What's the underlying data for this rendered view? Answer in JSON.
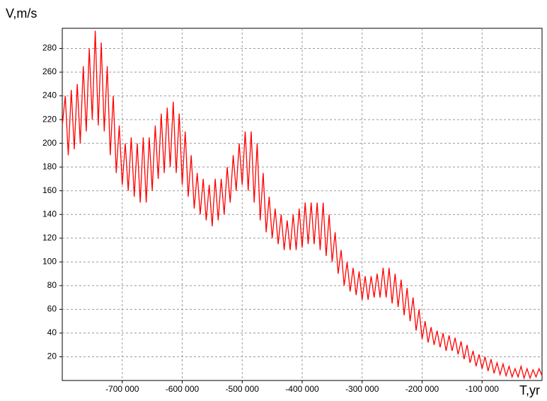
{
  "chart_data": {
    "type": "line",
    "x_label": "T,yr",
    "y_label": "V,m/s",
    "x": [
      -800000,
      -795000,
      -790000,
      -785000,
      -780000,
      -775000,
      -770000,
      -765000,
      -760000,
      -755000,
      -750000,
      -745000,
      -740000,
      -735000,
      -730000,
      -725000,
      -720000,
      -715000,
      -710000,
      -705000,
      -700000,
      -695000,
      -690000,
      -685000,
      -680000,
      -675000,
      -670000,
      -665000,
      -660000,
      -655000,
      -650000,
      -645000,
      -640000,
      -635000,
      -630000,
      -625000,
      -620000,
      -615000,
      -610000,
      -605000,
      -600000,
      -595000,
      -590000,
      -585000,
      -580000,
      -575000,
      -570000,
      -565000,
      -560000,
      -555000,
      -550000,
      -545000,
      -540000,
      -535000,
      -530000,
      -525000,
      -520000,
      -515000,
      -510000,
      -505000,
      -500000,
      -495000,
      -490000,
      -485000,
      -480000,
      -475000,
      -470000,
      -465000,
      -460000,
      -455000,
      -450000,
      -445000,
      -440000,
      -435000,
      -430000,
      -425000,
      -420000,
      -415000,
      -410000,
      -405000,
      -400000,
      -395000,
      -390000,
      -385000,
      -380000,
      -375000,
      -370000,
      -365000,
      -360000,
      -355000,
      -350000,
      -345000,
      -340000,
      -335000,
      -330000,
      -325000,
      -320000,
      -315000,
      -310000,
      -305000,
      -300000,
      -295000,
      -290000,
      -285000,
      -280000,
      -275000,
      -270000,
      -265000,
      -260000,
      -255000,
      -250000,
      -245000,
      -240000,
      -235000,
      -230000,
      -225000,
      -220000,
      -215000,
      -210000,
      -205000,
      -200000,
      -195000,
      -190000,
      -185000,
      -180000,
      -175000,
      -170000,
      -165000,
      -160000,
      -155000,
      -150000,
      -145000,
      -140000,
      -135000,
      -130000,
      -125000,
      -120000,
      -115000,
      -110000,
      -105000,
      -100000,
      -95000,
      -90000,
      -85000,
      -80000,
      -75000,
      -70000,
      -65000,
      -60000,
      -55000,
      -50000,
      -45000,
      -40000,
      -35000,
      -30000,
      -25000,
      -20000,
      -15000,
      -10000,
      -5000,
      0
    ],
    "series": [
      {
        "color": "#ff0000",
        "values": [
          215,
          240,
          190,
          245,
          195,
          250,
          200,
          265,
          210,
          280,
          220,
          295,
          215,
          285,
          210,
          265,
          190,
          240,
          175,
          215,
          165,
          200,
          160,
          205,
          155,
          200,
          150,
          205,
          150,
          205,
          160,
          215,
          170,
          225,
          175,
          230,
          180,
          235,
          175,
          225,
          165,
          210,
          155,
          190,
          145,
          175,
          140,
          170,
          135,
          165,
          130,
          170,
          135,
          170,
          140,
          180,
          150,
          190,
          160,
          200,
          165,
          210,
          160,
          210,
          150,
          200,
          135,
          175,
          125,
          155,
          120,
          145,
          115,
          140,
          110,
          135,
          110,
          140,
          110,
          145,
          112,
          150,
          115,
          150,
          115,
          150,
          110,
          150,
          105,
          140,
          100,
          125,
          90,
          110,
          80,
          100,
          75,
          95,
          72,
          92,
          68,
          88,
          68,
          88,
          70,
          90,
          70,
          95,
          70,
          95,
          65,
          90,
          62,
          85,
          55,
          78,
          50,
          70,
          42,
          60,
          35,
          50,
          32,
          45,
          30,
          42,
          28,
          40,
          25,
          38,
          25,
          36,
          22,
          33,
          18,
          30,
          15,
          25,
          12,
          22,
          10,
          20,
          8,
          18,
          6,
          15,
          5,
          14,
          4,
          12,
          3,
          10,
          3,
          12,
          2,
          10,
          2,
          9,
          3,
          10,
          4
        ]
      }
    ],
    "xlim": [
      -800000,
      0
    ],
    "xticks": [
      {
        "value": -700000,
        "label": "-700 000"
      },
      {
        "value": -600000,
        "label": "-600 000"
      },
      {
        "value": -500000,
        "label": "-500 000"
      },
      {
        "value": -400000,
        "label": "-400 000"
      },
      {
        "value": -300000,
        "label": "-300 000"
      },
      {
        "value": -200000,
        "label": "-200 000"
      },
      {
        "value": -100000,
        "label": "-100 000"
      }
    ],
    "ylim": [
      0,
      297
    ],
    "yticks": [
      20,
      40,
      60,
      80,
      100,
      120,
      140,
      160,
      180,
      200,
      220,
      240,
      260,
      280
    ],
    "grid": true
  }
}
